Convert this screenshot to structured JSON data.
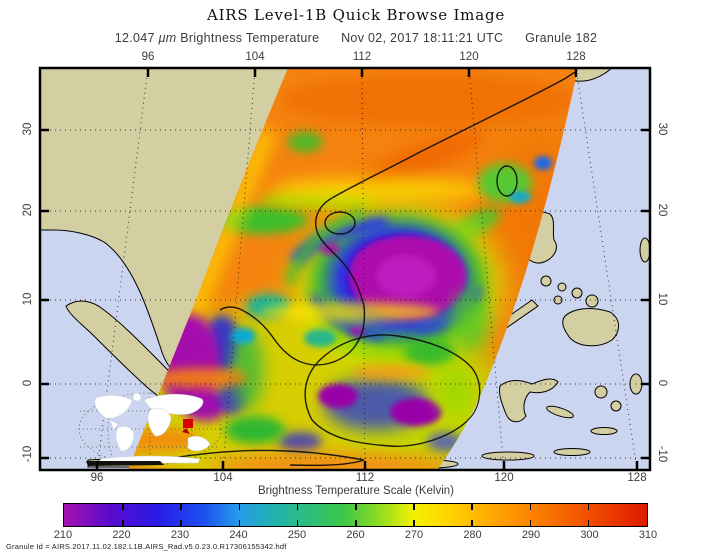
{
  "title": "AIRS Level-1B Quick Browse Image",
  "subtitle": {
    "wavelength_value": "12.047",
    "wavelength_unit": "μm",
    "product": "Brightness Temperature",
    "datetime": "Nov 02, 2017 18:11:21 UTC",
    "granule": "Granule 182"
  },
  "map": {
    "lon_ticks": [
      "96",
      "104",
      "112",
      "120",
      "128"
    ],
    "lat_ticks": [
      "30",
      "20",
      "10",
      "0",
      "-10"
    ]
  },
  "colorbar": {
    "label": "Brightness Temperature Scale (Kelvin)",
    "ticks": [
      "210",
      "220",
      "230",
      "240",
      "250",
      "260",
      "270",
      "280",
      "290",
      "300",
      "310"
    ],
    "min": 210,
    "max": 310,
    "units": "Kelvin",
    "gradient": [
      {
        "k": 210,
        "color": "#A613AE"
      },
      {
        "k": 218,
        "color": "#5A0ACF"
      },
      {
        "k": 226,
        "color": "#2A1BE8"
      },
      {
        "k": 234,
        "color": "#1C51F2"
      },
      {
        "k": 240,
        "color": "#279CE8"
      },
      {
        "k": 246,
        "color": "#20B3AE"
      },
      {
        "k": 252,
        "color": "#2DBD7C"
      },
      {
        "k": 258,
        "color": "#3DC748"
      },
      {
        "k": 264,
        "color": "#8FDC1F"
      },
      {
        "k": 270,
        "color": "#F2F200"
      },
      {
        "k": 276,
        "color": "#FFD400"
      },
      {
        "k": 284,
        "color": "#FFA400"
      },
      {
        "k": 292,
        "color": "#FB7A00"
      },
      {
        "k": 300,
        "color": "#F24E00"
      },
      {
        "k": 310,
        "color": "#DE1A00"
      }
    ]
  },
  "map_colors": {
    "ocean": "#CBD5EF",
    "land": "#D3CFA2",
    "coastline": "#000000",
    "swath_warm": "#F5830F",
    "storm_core": "#AD0DAD"
  },
  "footer": {
    "granule_id": "Granule Id = AIRS.2017.11.02.182.L1B.AIRS_Rad.v5.0.23.0.R17306155342.hdf"
  }
}
